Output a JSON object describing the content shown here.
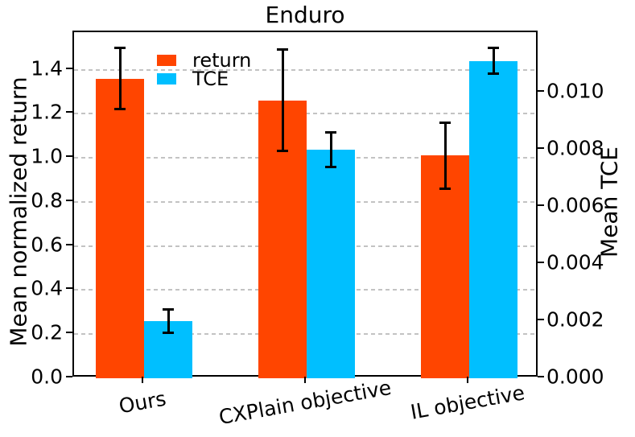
{
  "chart_data": {
    "type": "bar",
    "title": "Enduro",
    "categories": [
      "Ours",
      "CXPlain objective",
      "IL objective"
    ],
    "series": [
      {
        "name": "return",
        "axis": "left",
        "color": "#FF4500",
        "values": [
          1.36,
          1.26,
          1.01
        ],
        "errors": [
          0.14,
          0.23,
          0.15
        ]
      },
      {
        "name": "TCE",
        "axis": "right",
        "color": "#00BFFF",
        "values": [
          0.002,
          0.008,
          0.0111
        ],
        "errors": [
          0.0004,
          0.0006,
          0.00045
        ]
      }
    ],
    "left_axis": {
      "label": "Mean normalized return",
      "range": [
        0,
        1.57
      ],
      "ticks": [
        0,
        0.2,
        0.4,
        0.6,
        0.8,
        1.0,
        1.2,
        1.4
      ],
      "tick_labels": [
        "0.0",
        "0.2",
        "0.4",
        "0.6",
        "0.8",
        "1.0",
        "1.2",
        "1.4"
      ]
    },
    "right_axis": {
      "label": "Mean TCE",
      "range": [
        0,
        0.0121
      ],
      "ticks": [
        0,
        0.002,
        0.004,
        0.006,
        0.008,
        0.01
      ],
      "tick_labels": [
        "0.000",
        "0.002",
        "0.004",
        "0.006",
        "0.008",
        "0.010"
      ]
    },
    "legend": {
      "position": "upper left",
      "entries": [
        "return",
        "TCE"
      ]
    },
    "grid": true,
    "grid_color": "#c3c3c3",
    "error_bar_color": "#000000",
    "background": "#ffffff"
  }
}
